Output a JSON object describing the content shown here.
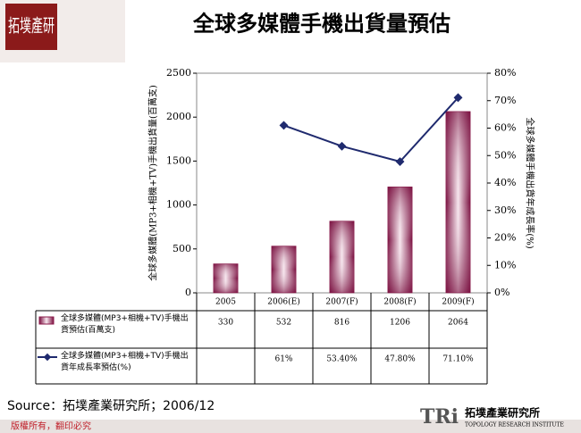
{
  "chart_data": {
    "type": "bar_line_table",
    "title": "全球多媒體手機出貨量預估",
    "ylabel": "全球多媒體(MP3+相機+TV)手機出貨量(百萬支)",
    "y2label": "全球多媒體手機出貨年成長率(%)",
    "categories": [
      "2005",
      "2006(E)",
      "2007(F)",
      "2008(F)",
      "2009(F)"
    ],
    "series": [
      {
        "name": "全球多媒體(MP3+相機+TV)手機出貨預估(百萬支)",
        "type": "bar",
        "color": "#8b1a4a",
        "values": [
          330,
          532,
          816,
          1206,
          2064
        ]
      },
      {
        "name": "全球多媒體(MP3+相機+TV)手機出貨年成長率預估(%)",
        "type": "line",
        "axis": "y2",
        "color": "#1f2a6e",
        "values": [
          null,
          61,
          53.4,
          47.8,
          71.1
        ],
        "value_labels": [
          null,
          "61%",
          "53.40%",
          "47.80%",
          "71.10%"
        ]
      }
    ],
    "ylim": [
      0,
      2500
    ],
    "yticks": [
      0,
      500,
      1000,
      1500,
      2000,
      2500
    ],
    "y2lim": [
      0,
      80
    ],
    "y2ticks": [
      {
        "value": 0,
        "label": "0%"
      },
      {
        "value": 10,
        "label": "10%"
      },
      {
        "value": 20,
        "label": "20%"
      },
      {
        "value": 30,
        "label": "30%"
      },
      {
        "value": 40,
        "label": "40%"
      },
      {
        "value": 50,
        "label": "50%"
      },
      {
        "value": 60,
        "label": "60%"
      },
      {
        "value": 70,
        "label": "70%"
      },
      {
        "value": 80,
        "label": "80%"
      }
    ]
  },
  "source": "Source：拓墣產業研究所；2006/12",
  "footer": "版權所有，翻印必究",
  "logo": {
    "corner": "拓墣產研",
    "mark": "TRi",
    "name": "拓墣產業研究所",
    "english": "TOPOLOGY RESEARCH INSTITUTE"
  }
}
